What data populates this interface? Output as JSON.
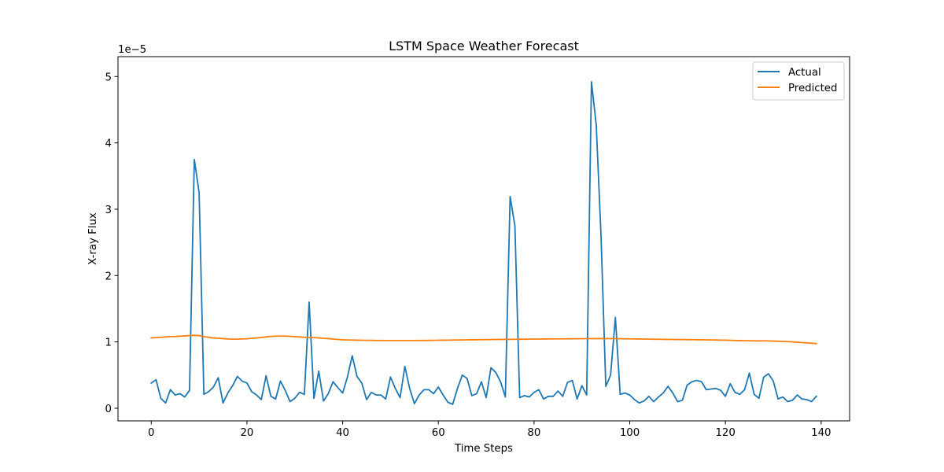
{
  "chart_data": {
    "type": "line",
    "title": "LSTM Space Weather Forecast",
    "xlabel": "Time Steps",
    "ylabel": "X-ray Flux",
    "y_offset_label": "1e−5",
    "xlim": [
      -6.95,
      145.95
    ],
    "ylim": [
      -0.19,
      5.3
    ],
    "x_ticks": [
      0,
      20,
      40,
      60,
      80,
      100,
      120,
      140
    ],
    "y_ticks": [
      0,
      1,
      2,
      3,
      4,
      5
    ],
    "grid": false,
    "legend_position": "top-right",
    "x": [
      0,
      1,
      2,
      3,
      4,
      5,
      6,
      7,
      8,
      9,
      10,
      11,
      12,
      13,
      14,
      15,
      16,
      17,
      18,
      19,
      20,
      21,
      22,
      23,
      24,
      25,
      26,
      27,
      28,
      29,
      30,
      31,
      32,
      33,
      34,
      35,
      36,
      37,
      38,
      39,
      40,
      41,
      42,
      43,
      44,
      45,
      46,
      47,
      48,
      49,
      50,
      51,
      52,
      53,
      54,
      55,
      56,
      57,
      58,
      59,
      60,
      61,
      62,
      63,
      64,
      65,
      66,
      67,
      68,
      69,
      70,
      71,
      72,
      73,
      74,
      75,
      76,
      77,
      78,
      79,
      80,
      81,
      82,
      83,
      84,
      85,
      86,
      87,
      88,
      89,
      90,
      91,
      92,
      93,
      94,
      95,
      96,
      97,
      98,
      99,
      100,
      101,
      102,
      103,
      104,
      105,
      106,
      107,
      108,
      109,
      110,
      111,
      112,
      113,
      114,
      115,
      116,
      117,
      118,
      119,
      120,
      121,
      122,
      123,
      124,
      125,
      126,
      127,
      128,
      129,
      130,
      131,
      132,
      133,
      134,
      135,
      136,
      137,
      138,
      139
    ],
    "series": [
      {
        "name": "Actual",
        "color": "#1f77b4",
        "values": [
          0.38,
          0.43,
          0.15,
          0.08,
          0.28,
          0.2,
          0.22,
          0.17,
          0.27,
          3.75,
          3.25,
          0.21,
          0.25,
          0.32,
          0.46,
          0.08,
          0.23,
          0.34,
          0.48,
          0.41,
          0.38,
          0.25,
          0.2,
          0.13,
          0.49,
          0.18,
          0.14,
          0.41,
          0.27,
          0.1,
          0.15,
          0.24,
          0.21,
          1.6,
          0.15,
          0.56,
          0.11,
          0.22,
          0.4,
          0.31,
          0.23,
          0.47,
          0.79,
          0.48,
          0.38,
          0.13,
          0.24,
          0.2,
          0.2,
          0.14,
          0.47,
          0.3,
          0.16,
          0.63,
          0.3,
          0.07,
          0.2,
          0.28,
          0.28,
          0.22,
          0.32,
          0.2,
          0.09,
          0.06,
          0.3,
          0.5,
          0.45,
          0.19,
          0.22,
          0.4,
          0.16,
          0.61,
          0.54,
          0.4,
          0.17,
          3.19,
          2.75,
          0.16,
          0.19,
          0.17,
          0.24,
          0.28,
          0.14,
          0.18,
          0.18,
          0.26,
          0.18,
          0.39,
          0.42,
          0.14,
          0.34,
          0.2,
          4.92,
          4.27,
          2.6,
          0.33,
          0.5,
          1.37,
          0.21,
          0.23,
          0.2,
          0.13,
          0.08,
          0.11,
          0.18,
          0.1,
          0.17,
          0.23,
          0.33,
          0.23,
          0.1,
          0.12,
          0.35,
          0.4,
          0.42,
          0.4,
          0.28,
          0.29,
          0.3,
          0.27,
          0.18,
          0.37,
          0.24,
          0.21,
          0.28,
          0.53,
          0.21,
          0.15,
          0.47,
          0.52,
          0.41,
          0.14,
          0.17,
          0.1,
          0.12,
          0.2,
          0.14,
          0.13,
          0.1,
          0.18
        ]
      },
      {
        "name": "Predicted",
        "color": "#ff7f0e",
        "values": [
          1.06,
          1.065,
          1.07,
          1.075,
          1.08,
          1.082,
          1.086,
          1.09,
          1.095,
          1.1,
          1.095,
          1.08,
          1.07,
          1.06,
          1.055,
          1.05,
          1.045,
          1.042,
          1.042,
          1.045,
          1.048,
          1.055,
          1.06,
          1.067,
          1.075,
          1.083,
          1.088,
          1.088,
          1.088,
          1.085,
          1.08,
          1.075,
          1.07,
          1.065,
          1.065,
          1.06,
          1.055,
          1.05,
          1.043,
          1.037,
          1.032,
          1.03,
          1.028,
          1.026,
          1.025,
          1.024,
          1.023,
          1.022,
          1.022,
          1.021,
          1.021,
          1.021,
          1.021,
          1.021,
          1.021,
          1.021,
          1.022,
          1.022,
          1.023,
          1.024,
          1.025,
          1.026,
          1.027,
          1.028,
          1.029,
          1.03,
          1.031,
          1.032,
          1.033,
          1.034,
          1.035,
          1.036,
          1.037,
          1.038,
          1.039,
          1.039,
          1.04,
          1.041,
          1.041,
          1.042,
          1.043,
          1.043,
          1.044,
          1.045,
          1.045,
          1.046,
          1.046,
          1.047,
          1.047,
          1.048,
          1.048,
          1.049,
          1.049,
          1.05,
          1.05,
          1.05,
          1.049,
          1.049,
          1.048,
          1.047,
          1.046,
          1.045,
          1.044,
          1.043,
          1.042,
          1.041,
          1.04,
          1.039,
          1.038,
          1.037,
          1.036,
          1.036,
          1.035,
          1.034,
          1.033,
          1.032,
          1.031,
          1.03,
          1.029,
          1.027,
          1.026,
          1.024,
          1.022,
          1.02,
          1.018,
          1.017,
          1.016,
          1.016,
          1.016,
          1.015,
          1.013,
          1.01,
          1.008,
          1.005,
          1.0,
          0.995,
          0.99,
          0.985,
          0.98,
          0.975
        ]
      }
    ]
  }
}
